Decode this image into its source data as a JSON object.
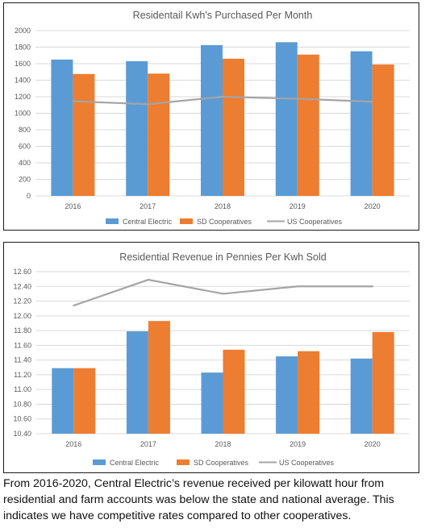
{
  "chart_data": [
    {
      "type": "bar",
      "title": "Residentail Kwh's Purchased Per Month",
      "categories": [
        "2016",
        "2017",
        "2018",
        "2019",
        "2020"
      ],
      "series": [
        {
          "name": "Central Electric",
          "type": "bar",
          "color": "#5b9bd5",
          "values": [
            1650,
            1630,
            1825,
            1860,
            1750
          ]
        },
        {
          "name": "SD Cooperatives",
          "type": "bar",
          "color": "#ed7d31",
          "values": [
            1475,
            1480,
            1660,
            1710,
            1590
          ]
        },
        {
          "name": "US Cooperatives",
          "type": "line",
          "color": "#a5a5a5",
          "values": [
            1145,
            1110,
            1200,
            1175,
            1140
          ]
        }
      ],
      "ylim": [
        0,
        2000
      ],
      "yticks": [
        "0",
        "200",
        "400",
        "600",
        "800",
        "1000",
        "1200",
        "1400",
        "1600",
        "1800",
        "2000"
      ],
      "grid": true,
      "legend": "bottom"
    },
    {
      "type": "bar",
      "title": "Residential Revenue in Pennies Per Kwh Sold",
      "categories": [
        "2016",
        "2017",
        "2018",
        "2019",
        "2020"
      ],
      "series": [
        {
          "name": "Central Electric",
          "type": "bar",
          "color": "#5b9bd5",
          "values": [
            11.29,
            11.79,
            11.23,
            11.45,
            11.42
          ]
        },
        {
          "name": "SD Cooperatives",
          "type": "bar",
          "color": "#ed7d31",
          "values": [
            11.29,
            11.93,
            11.54,
            11.52,
            11.78
          ]
        },
        {
          "name": "US Cooperatives",
          "type": "line",
          "color": "#a5a5a5",
          "values": [
            12.14,
            12.49,
            12.3,
            12.4,
            12.4
          ]
        }
      ],
      "ylim": [
        10.4,
        12.6
      ],
      "yticks": [
        "10.40",
        "10.60",
        "10.80",
        "11.00",
        "11.20",
        "11.40",
        "11.60",
        "11.80",
        "12.00",
        "12.20",
        "12.40",
        "12.60"
      ],
      "grid": true,
      "legend": "bottom"
    }
  ],
  "caption": "From 2016-2020, Central Electric’s revenue received per kilowatt hour from residential and farm accounts was below the state and national average. This indicates we have competitive rates compared to other cooperatives."
}
